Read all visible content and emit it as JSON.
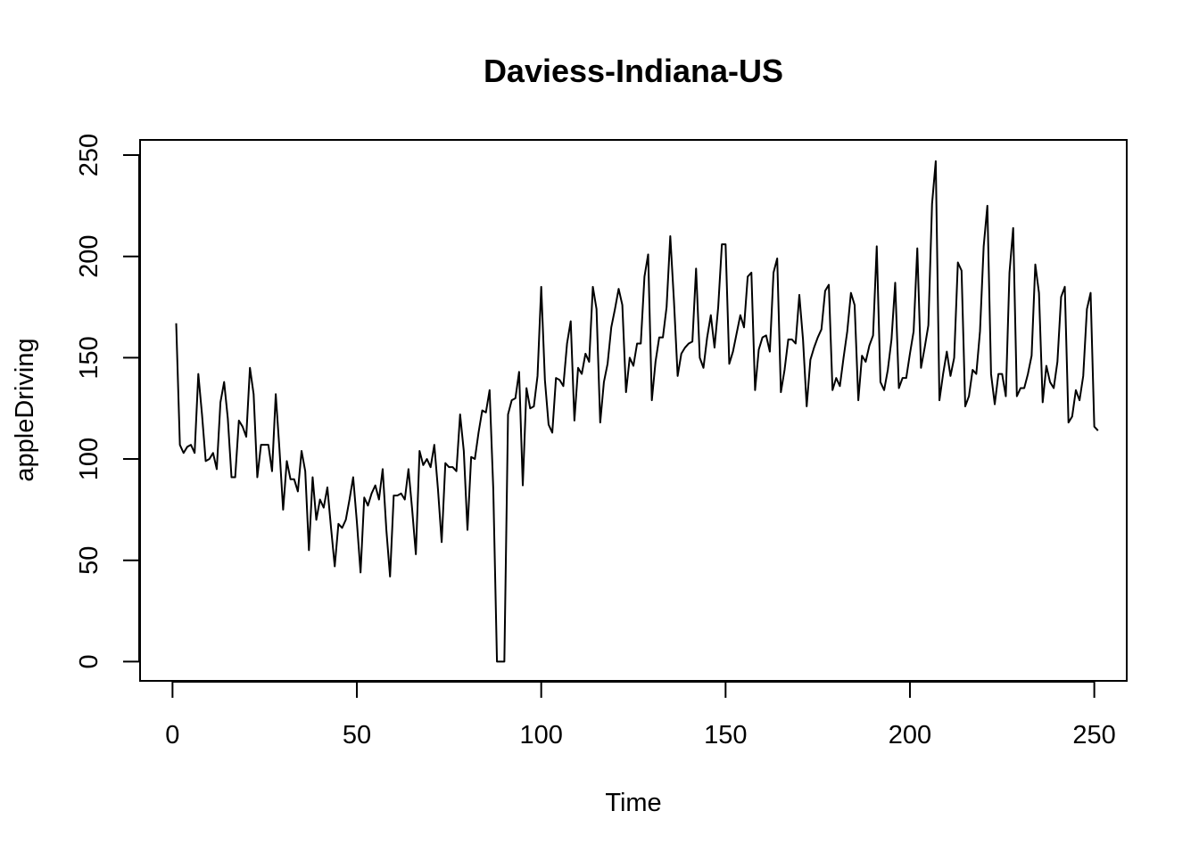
{
  "chart_data": {
    "type": "line",
    "title": "Daviess-Indiana-US",
    "xlabel": "Time",
    "ylabel": "appleDriving",
    "xlim": [
      -8.8,
      258.8
    ],
    "ylim": [
      -9.5,
      257.5
    ],
    "xticks": [
      0,
      50,
      100,
      150,
      200,
      250
    ],
    "yticks": [
      0,
      50,
      100,
      150,
      200,
      250
    ],
    "xtick_labels": [
      "0",
      "50",
      "100",
      "150",
      "200",
      "250"
    ],
    "ytick_labels": [
      "0",
      "50",
      "100",
      "150",
      "200",
      "250"
    ],
    "grid": false,
    "line_color": "#000000",
    "series": [
      {
        "x_start": 1,
        "values": [
          167,
          107,
          103,
          106,
          107,
          103,
          142,
          122,
          99,
          100,
          103,
          95,
          128,
          138,
          120,
          91,
          91,
          119,
          116,
          111,
          145,
          132,
          91,
          107,
          107,
          107,
          94,
          132,
          105,
          75,
          99,
          90,
          90,
          84,
          104,
          94,
          55,
          91,
          70,
          80,
          76,
          86,
          66,
          47,
          68,
          66,
          70,
          80,
          91,
          69,
          44,
          81,
          77,
          83,
          87,
          80,
          95,
          65,
          42,
          82,
          82,
          83,
          80,
          95,
          75,
          53,
          104,
          97,
          100,
          96,
          107,
          85,
          59,
          98,
          96,
          96,
          94,
          122,
          104,
          65,
          101,
          100,
          113,
          124,
          123,
          134,
          85,
          0,
          0,
          0,
          122,
          129,
          130,
          143,
          87,
          135,
          125,
          126,
          141,
          185,
          139,
          117,
          113,
          140,
          139,
          136,
          157,
          168,
          119,
          145,
          142,
          152,
          148,
          185,
          174,
          118,
          138,
          147,
          165,
          174,
          184,
          176,
          133,
          150,
          146,
          157,
          157,
          190,
          201,
          129,
          148,
          160,
          160,
          175,
          210,
          178,
          141,
          152,
          155,
          157,
          158,
          194,
          150,
          145,
          160,
          171,
          155,
          175,
          206,
          206,
          147,
          153,
          162,
          171,
          165,
          190,
          192,
          134,
          154,
          160,
          161,
          153,
          192,
          199,
          133,
          144,
          159,
          159,
          157,
          181,
          159,
          126,
          149,
          155,
          160,
          164,
          183,
          186,
          134,
          140,
          136,
          150,
          163,
          182,
          176,
          129,
          151,
          148,
          156,
          161,
          205,
          138,
          134,
          144,
          159,
          187,
          135,
          140,
          140,
          152,
          163,
          204,
          145,
          155,
          166,
          226,
          247,
          129,
          142,
          153,
          141,
          150,
          197,
          193,
          126,
          131,
          144,
          142,
          163,
          205,
          225,
          142,
          127,
          142,
          142,
          131,
          192,
          214,
          131,
          135,
          135,
          142,
          151,
          196,
          182,
          128,
          146,
          138,
          135,
          148,
          180,
          185,
          118,
          121,
          134,
          129,
          141,
          174,
          182,
          116,
          114
        ]
      }
    ]
  }
}
